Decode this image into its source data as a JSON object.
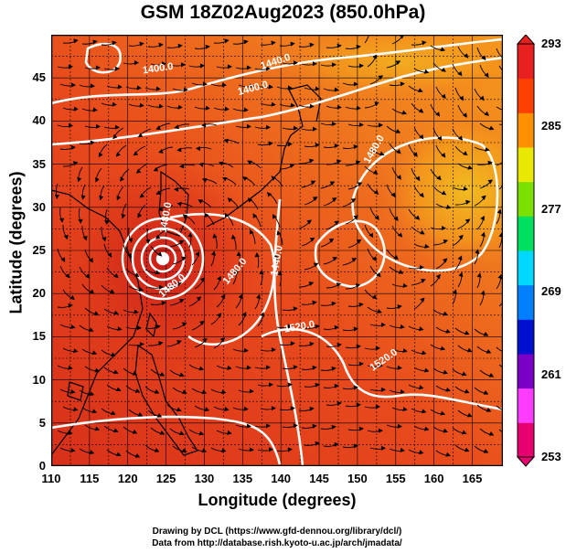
{
  "title": "GSM 18Z02Aug2023 (850.0hPa)",
  "xlabel": "Longitude (degrees)",
  "ylabel": "Latitude  (degrees)",
  "x_ticks": [
    "110",
    "115",
    "120",
    "125",
    "130",
    "135",
    "140",
    "145",
    "150",
    "155",
    "160",
    "165"
  ],
  "y_ticks": [
    "0",
    "5",
    "10",
    "15",
    "20",
    "25",
    "30",
    "35",
    "40",
    "45"
  ],
  "colorbar": {
    "labels": [
      "293",
      "285",
      "277",
      "269",
      "261",
      "253"
    ],
    "min": 253,
    "max": 293,
    "colors": [
      "#e8006e",
      "#ff3cff",
      "#7a00c8",
      "#0010d0",
      "#0080ff",
      "#00d8ff",
      "#00e060",
      "#7ae000",
      "#e8e800",
      "#ff9000",
      "#ff4000",
      "#e82020"
    ]
  },
  "contour_labels": [
    "1400.0",
    "1440.0",
    "1400.0",
    "1480.0",
    "1480.0",
    "1440.0",
    "1480.0",
    "1480.0",
    "1520.0",
    "1520.0"
  ],
  "credit": {
    "line1": "Drawing by DCL (https://www.gfd-dennou.org/library/dcl/)",
    "line2": "Data from http://database.rish.kyoto-u.ac.jp/arch/jmadata/"
  },
  "map": {
    "lon_range": [
      110,
      169
    ],
    "lat_range": [
      0,
      50
    ],
    "typhoon_center": [
      125.5,
      26.5
    ],
    "background_colors": [
      "#e03a1a",
      "#ee6a1e",
      "#f5941c",
      "#f0c020"
    ]
  }
}
